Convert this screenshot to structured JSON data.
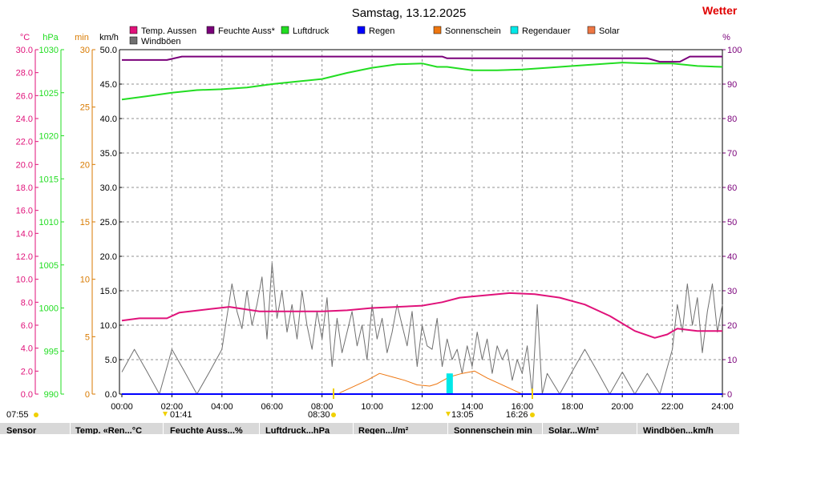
{
  "title": "Samstag, 13.12.2025",
  "brand": "Wetter",
  "colors": {
    "temp": "#e0127a",
    "humidity": "#7a007a",
    "pressure": "#22dd22",
    "rain": "#0000ff",
    "sunshine": "#ee7711",
    "rain_duration": "#00e8e8",
    "solar": "#ee7744",
    "gusts": "#707070",
    "grid": "#909090",
    "min_axis": "#d97a00"
  },
  "sun_events": {
    "sunrise": "07:55",
    "sunset": "16:26",
    "moonset": "01:41",
    "event2": "08:30",
    "event3": "13:05"
  },
  "footer": {
    "columns": [
      "Sensor",
      "Temp. «Ren...°C",
      "Feuchte Auss...%",
      "Luftdruck...hPa",
      "Regen...l/m²",
      "Sonnenschein min",
      "Solar...W/m²",
      "Windböen...km/h"
    ]
  },
  "chart_data": {
    "type": "line",
    "title": "Samstag, 13.12.2025",
    "x_ticks": [
      "00:00",
      "02:00",
      "04:00",
      "06:00",
      "08:00",
      "10:00",
      "12:00",
      "14:00",
      "16:00",
      "18:00",
      "20:00",
      "22:00",
      "24:00"
    ],
    "xlim": [
      0,
      24
    ],
    "axes": {
      "temp": {
        "label": "°C",
        "ylim": [
          0,
          30
        ],
        "ticks": [
          "0.0",
          "2.0",
          "4.0",
          "6.0",
          "8.0",
          "10.0",
          "12.0",
          "14.0",
          "16.0",
          "18.0",
          "20.0",
          "22.0",
          "24.0",
          "26.0",
          "28.0",
          "30.0"
        ]
      },
      "pressure": {
        "label": "hPa",
        "ylim": [
          990,
          1030
        ],
        "ticks": [
          "990",
          "995",
          "1000",
          "1005",
          "1010",
          "1015",
          "1020",
          "1025",
          "1030"
        ]
      },
      "minutes": {
        "label": "min",
        "ylim": [
          0,
          30
        ],
        "ticks": [
          "0",
          "5",
          "10",
          "15",
          "20",
          "25",
          "30"
        ]
      },
      "speed": {
        "label": "km/h",
        "ylim": [
          0,
          50
        ],
        "ticks": [
          "0.0",
          "5.0",
          "10.0",
          "15.0",
          "20.0",
          "25.0",
          "30.0",
          "35.0",
          "40.0",
          "45.0",
          "50.0"
        ]
      },
      "humidity": {
        "label": "%",
        "ylim": [
          0,
          100
        ],
        "ticks": [
          "0",
          "10",
          "20",
          "30",
          "40",
          "50",
          "60",
          "70",
          "80",
          "90",
          "100"
        ]
      }
    },
    "legend": [
      "Temp. Aussen",
      "Feuchte Auss*",
      "Luftdruck",
      "Regen",
      "Sonnenschein",
      "Regendauer",
      "Solar",
      "Windböen"
    ],
    "series": [
      {
        "name": "Temp. Aussen",
        "axis": "temp",
        "x": [
          0,
          0.7,
          1.8,
          2.3,
          3.5,
          4.3,
          5.5,
          6.5,
          8.0,
          9.0,
          10.0,
          11.0,
          12.0,
          12.8,
          13.5,
          14.5,
          15.5,
          16.5,
          17.5,
          18.5,
          19.5,
          20.5,
          21.3,
          21.8,
          22.2,
          23.0,
          24.0
        ],
        "y": [
          6.4,
          6.6,
          6.6,
          7.1,
          7.4,
          7.6,
          7.2,
          7.2,
          7.2,
          7.3,
          7.5,
          7.6,
          7.7,
          8.0,
          8.4,
          8.6,
          8.8,
          8.7,
          8.4,
          7.8,
          6.8,
          5.5,
          4.9,
          5.2,
          5.7,
          5.5,
          5.5
        ]
      },
      {
        "name": "Feuchte Auss*",
        "axis": "humidity",
        "x": [
          0,
          1.8,
          2.4,
          6,
          12,
          12.8,
          13,
          15,
          18,
          19.5,
          20.3,
          21,
          21.5,
          22.3,
          22.7,
          24
        ],
        "y": [
          97,
          97,
          98,
          98,
          98,
          98,
          97.5,
          97.5,
          97.5,
          97.5,
          97.5,
          97.5,
          96.5,
          96.5,
          98,
          98
        ]
      },
      {
        "name": "Luftdruck",
        "axis": "pressure",
        "x": [
          0,
          1,
          2,
          3,
          4,
          5,
          6,
          7,
          8,
          9,
          10,
          11,
          12,
          12.6,
          13,
          14,
          15,
          16,
          17,
          18,
          19,
          20,
          21,
          22,
          23,
          24
        ],
        "y": [
          1024.2,
          1024.6,
          1025,
          1025.3,
          1025.4,
          1025.6,
          1026,
          1026.3,
          1026.6,
          1027.3,
          1027.9,
          1028.3,
          1028.4,
          1028.0,
          1028.0,
          1027.6,
          1027.6,
          1027.7,
          1027.9,
          1028.1,
          1028.3,
          1028.5,
          1028.4,
          1028.4,
          1028.1,
          1028.0
        ]
      },
      {
        "name": "Regen",
        "axis": "speed",
        "x": [
          0,
          24
        ],
        "y": [
          0,
          0
        ]
      },
      {
        "name": "Sonnenschein",
        "axis": "minutes",
        "x": [
          8.7,
          9.2,
          9.8,
          10.3,
          10.8,
          11.3,
          11.8,
          12.3,
          12.6,
          13.1,
          13.6,
          14.1,
          14.6,
          15.1,
          15.6,
          16.0
        ],
        "y": [
          0.1,
          0.6,
          1.2,
          1.8,
          1.5,
          1.2,
          0.8,
          0.7,
          0.9,
          1.5,
          1.8,
          2.0,
          1.4,
          0.9,
          0.4,
          0
        ]
      },
      {
        "name": "Regendauer",
        "axis": "minutes",
        "x": [
          13.1
        ],
        "y": [
          1.8
        ]
      },
      {
        "name": "Solar",
        "axis": "minutes",
        "x": [
          0,
          24
        ],
        "y": [
          0,
          0
        ]
      },
      {
        "name": "Windböen",
        "axis": "speed",
        "x": [
          0,
          0.5,
          1.0,
          1.5,
          2.0,
          2.5,
          3.0,
          3.5,
          4.0,
          4.4,
          4.6,
          4.8,
          5.0,
          5.2,
          5.4,
          5.6,
          5.8,
          6.0,
          6.2,
          6.4,
          6.6,
          6.8,
          7.0,
          7.2,
          7.4,
          7.6,
          7.8,
          8.0,
          8.2,
          8.4,
          8.6,
          8.8,
          9.0,
          9.2,
          9.4,
          9.6,
          9.8,
          10.0,
          10.2,
          10.4,
          10.6,
          10.8,
          11.0,
          11.2,
          11.4,
          11.6,
          11.8,
          12.0,
          12.2,
          12.4,
          12.6,
          12.8,
          13.0,
          13.2,
          13.4,
          13.6,
          13.8,
          14.0,
          14.2,
          14.4,
          14.6,
          14.8,
          15.0,
          15.2,
          15.4,
          15.6,
          15.8,
          16.0,
          16.2,
          16.4,
          16.6,
          16.8,
          17.0,
          17.5,
          18.0,
          18.5,
          19.0,
          19.5,
          20.0,
          20.5,
          21.0,
          21.5,
          22.0,
          22.2,
          22.4,
          22.6,
          22.8,
          23.0,
          23.2,
          23.4,
          23.6,
          23.8,
          24.0
        ],
        "y": [
          3.2,
          6.5,
          3.3,
          0,
          6.5,
          3.3,
          0,
          3.2,
          6.5,
          16,
          12,
          9.5,
          15,
          10,
          13,
          17,
          8,
          19,
          11,
          15,
          9,
          13,
          8,
          15,
          10,
          6.5,
          12,
          8,
          14,
          4,
          11,
          6,
          9,
          12,
          7,
          10,
          5,
          13,
          8,
          11,
          6,
          9,
          13,
          10,
          7,
          12,
          4,
          10,
          7,
          6.5,
          11,
          4,
          8,
          5,
          6.5,
          3,
          7,
          4,
          9,
          5,
          8,
          3,
          7,
          5,
          6.5,
          2,
          5,
          3,
          7,
          0,
          13,
          0,
          3,
          0,
          3.3,
          6.5,
          3.3,
          0,
          3.2,
          0,
          3,
          0,
          6.5,
          13,
          9,
          16,
          10,
          14,
          6,
          12,
          16,
          9,
          13
        ]
      }
    ]
  }
}
